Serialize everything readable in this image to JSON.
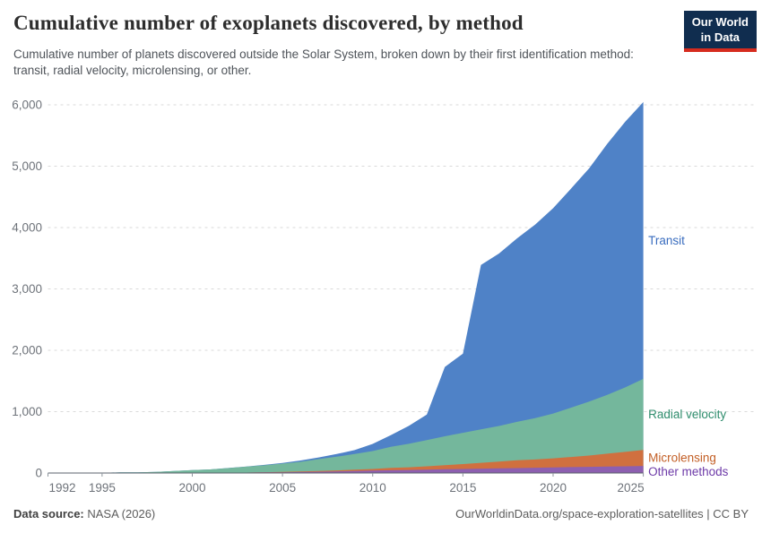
{
  "header": {
    "title": "Cumulative number of exoplanets discovered, by method",
    "subtitle": "Cumulative number of planets discovered outside the Solar System, broken down by their first identification method: transit, radial velocity, microlensing, or other.",
    "logo": {
      "line1": "Our World",
      "line2": "in Data"
    }
  },
  "footer": {
    "source_label": "Data source:",
    "source_value": "NASA (2026)",
    "link": "OurWorldinData.org/space-exploration-satellites | CC BY"
  },
  "colors": {
    "background": "#ffffff",
    "title": "#2d2d2d",
    "subtitle": "#4f545a",
    "axis_line": "#5b636d",
    "tick_mark": "#8f969e",
    "tick_label": "#6e737a",
    "gridline": "#dadada",
    "logo_bg": "#102d4f",
    "logo_accent": "#d62b1e"
  },
  "chart_data": {
    "type": "area",
    "stacked": true,
    "title": "Cumulative number of exoplanets discovered, by method",
    "xlabel": "",
    "ylabel": "",
    "xlim": [
      1992,
      2025
    ],
    "ylim": [
      0,
      6000
    ],
    "grid": "dashed-horizontal",
    "legend_position": "labels-right-of-plot",
    "x": [
      1992,
      1993,
      1994,
      1995,
      1996,
      1997,
      1998,
      1999,
      2000,
      2001,
      2002,
      2003,
      2004,
      2005,
      2006,
      2007,
      2008,
      2009,
      2010,
      2011,
      2012,
      2013,
      2014,
      2015,
      2016,
      2017,
      2018,
      2019,
      2020,
      2021,
      2022,
      2023,
      2024,
      2025
    ],
    "x_tick_labels": [
      "1992",
      "1995",
      "2000",
      "2005",
      "2010",
      "2015",
      "2020",
      "2025"
    ],
    "x_ticks": [
      1992,
      1995,
      2000,
      2005,
      2010,
      2015,
      2020,
      2025
    ],
    "y_ticks": [
      0,
      1000,
      2000,
      3000,
      4000,
      5000,
      6000
    ],
    "y_tick_labels": [
      "0",
      "1,000",
      "2,000",
      "3,000",
      "4,000",
      "5,000",
      "6,000"
    ],
    "series": [
      {
        "name": "Other methods",
        "fill": "#8d5fb0",
        "label_color": "#6d3aa8",
        "values": [
          2,
          2,
          3,
          3,
          3,
          3,
          4,
          4,
          4,
          4,
          5,
          8,
          10,
          12,
          16,
          21,
          26,
          33,
          39,
          45,
          49,
          56,
          61,
          66,
          71,
          76,
          80,
          86,
          92,
          96,
          100,
          105,
          110,
          115
        ]
      },
      {
        "name": "Microlensing",
        "fill": "#d0703f",
        "label_color": "#c35f26",
        "values": [
          0,
          0,
          0,
          0,
          0,
          0,
          0,
          0,
          0,
          0,
          0,
          0,
          3,
          5,
          9,
          13,
          17,
          21,
          26,
          39,
          45,
          53,
          68,
          80,
          95,
          110,
          128,
          135,
          148,
          165,
          185,
          210,
          235,
          260
        ]
      },
      {
        "name": "Radial velocity",
        "fill": "#74b79c",
        "label_color": "#2f8d6d",
        "values": [
          0,
          0,
          0,
          1,
          7,
          9,
          15,
          28,
          43,
          55,
          76,
          95,
          113,
          137,
          158,
          192,
          222,
          255,
          292,
          342,
          382,
          428,
          470,
          510,
          545,
          580,
          625,
          672,
          730,
          805,
          880,
          960,
          1050,
          1160
        ]
      },
      {
        "name": "Transit",
        "fill": "#4f82c7",
        "label_color": "#3a6dbf",
        "values": [
          0,
          0,
          0,
          0,
          0,
          0,
          0,
          0,
          0,
          0,
          1,
          3,
          7,
          10,
          21,
          28,
          45,
          64,
          117,
          190,
          292,
          417,
          1130,
          1290,
          2680,
          2810,
          2990,
          3155,
          3345,
          3570,
          3800,
          4090,
          4330,
          4510
        ]
      }
    ]
  }
}
